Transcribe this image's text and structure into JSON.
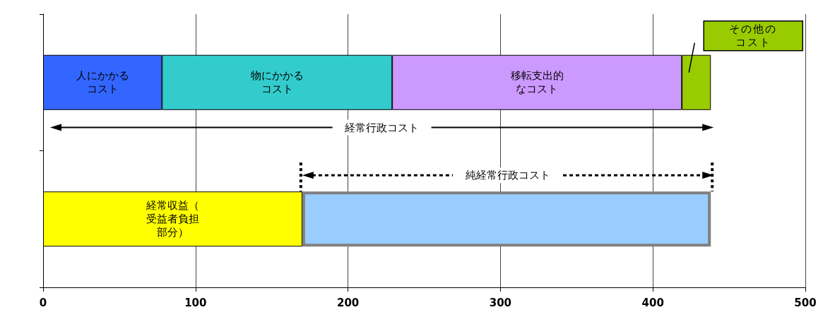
{
  "chart_data": {
    "type": "bar",
    "orientation": "horizontal",
    "stacked": true,
    "categories": [
      null,
      null
    ],
    "xlim": [
      0,
      500
    ],
    "xticks": [
      0,
      100,
      200,
      300,
      400,
      500
    ],
    "grid": "x",
    "legend": false,
    "series": [
      {
        "name": "人にかかるコスト",
        "color": "#3366ff",
        "values": [
          78,
          null
        ]
      },
      {
        "name": "物にかかるコスト",
        "color": "#33cccc",
        "values": [
          151,
          null
        ]
      },
      {
        "name": "移転支出的なコスト",
        "color": "#cc99ff",
        "values": [
          190,
          null
        ]
      },
      {
        "name": "その他のコスト",
        "color": "#99cc00",
        "values": [
          19,
          null
        ]
      },
      {
        "name": "経常収益（受益者負担部分）",
        "color": "#ffff00",
        "values": [
          null,
          170
        ]
      },
      {
        "color": "#99ccff",
        "values": [
          null,
          268
        ]
      }
    ],
    "annotations": [
      "経常行政コスト",
      "純経常行政コスト"
    ]
  }
}
